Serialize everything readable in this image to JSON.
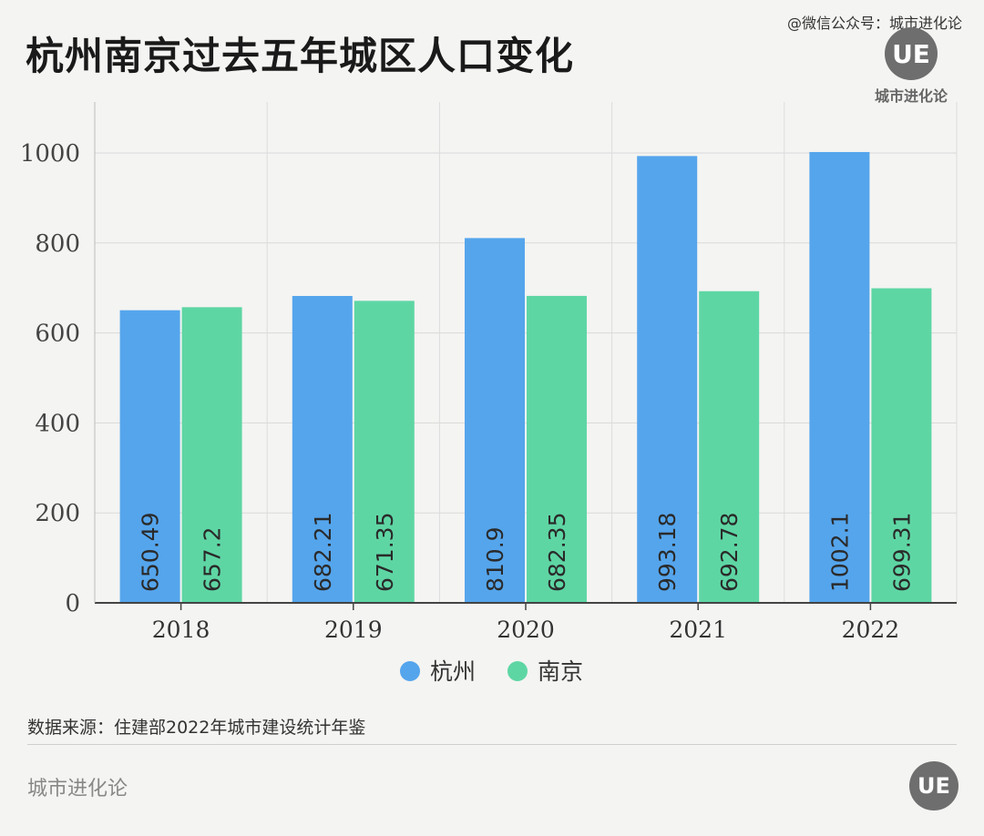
{
  "header": {
    "title": "杭州南京过去五年城区人口变化",
    "credit": "@微信公众号：城市进化论",
    "logo_mark": "UE",
    "logo_name": "城市进化论"
  },
  "chart_data": {
    "type": "bar",
    "categories": [
      "2018",
      "2019",
      "2020",
      "2021",
      "2022"
    ],
    "series": [
      {
        "name": "杭州",
        "color": "#55a5ec",
        "values": [
          650.49,
          682.21,
          810.9,
          993.18,
          1002.1
        ]
      },
      {
        "name": "南京",
        "color": "#5ed6a4",
        "values": [
          657.2,
          671.35,
          682.35,
          692.78,
          699.31
        ]
      }
    ],
    "value_labels": [
      [
        "650.49",
        "682.21",
        "810.9",
        "993.18",
        "1002.1"
      ],
      [
        "657.2",
        "671.35",
        "682.35",
        "692.78",
        "699.31"
      ]
    ],
    "yticks": [
      "0",
      "200",
      "400",
      "600",
      "800",
      "1000"
    ],
    "ylim": [
      0,
      1000
    ],
    "grid": true,
    "legend_position": "bottom-center"
  },
  "footer": {
    "source": "数据来源：住建部2022年城市建设统计年鉴",
    "brand": "城市进化论",
    "logo_mark": "UE"
  }
}
